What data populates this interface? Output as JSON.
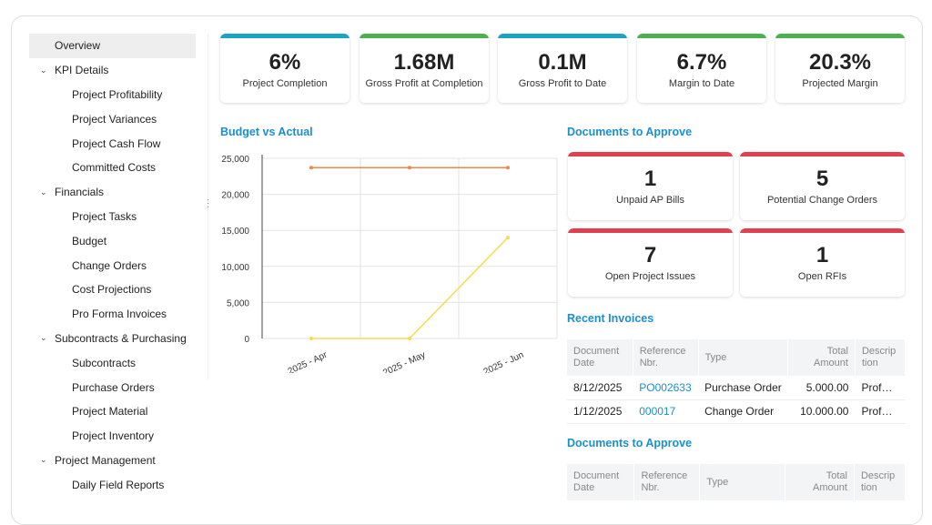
{
  "sidebar": {
    "items": [
      {
        "label": "Overview",
        "level": 0,
        "selected": true
      },
      {
        "label": "KPI Details",
        "level": "group"
      },
      {
        "label": "Project Profitability",
        "level": 1
      },
      {
        "label": "Project Variances",
        "level": 1
      },
      {
        "label": "Project Cash Flow",
        "level": 1
      },
      {
        "label": "Committed Costs",
        "level": 1
      },
      {
        "label": "Financials",
        "level": "group"
      },
      {
        "label": "Project Tasks",
        "level": 1
      },
      {
        "label": "Budget",
        "level": 1
      },
      {
        "label": "Change Orders",
        "level": 1
      },
      {
        "label": "Cost Projections",
        "level": 1
      },
      {
        "label": "Pro Forma Invoices",
        "level": 1
      },
      {
        "label": "Subcontracts & Purchasing",
        "level": "group"
      },
      {
        "label": "Subcontracts",
        "level": 1
      },
      {
        "label": "Purchase Orders",
        "level": 1
      },
      {
        "label": "Project Material",
        "level": 1
      },
      {
        "label": "Project Inventory",
        "level": 1
      },
      {
        "label": "Project Management",
        "level": "group"
      },
      {
        "label": "Daily Field Reports",
        "level": 1
      }
    ]
  },
  "kpis": [
    {
      "value": "6%",
      "label": "Project Completion",
      "color": "#1ba3c6"
    },
    {
      "value": "1.68M",
      "label": "Gross Profit at Completion",
      "color": "#4cb050"
    },
    {
      "value": "0.1M",
      "label": "Gross Profit to Date",
      "color": "#1ba3c6"
    },
    {
      "value": "6.7%",
      "label": "Margin to Date",
      "color": "#4cb050"
    },
    {
      "value": "20.3%",
      "label": "Projected Margin",
      "color": "#4cb050"
    }
  ],
  "budget_title": "Budget vs Actual",
  "chart_data": {
    "type": "line",
    "categories": [
      "2025 - Apr",
      "2025 - May",
      "2025 - Jun"
    ],
    "series": [
      {
        "values": [
          23700,
          23700,
          23700
        ],
        "color": "#f0874a"
      },
      {
        "values": [
          0,
          0,
          14000
        ],
        "color": "#f5dc4a"
      }
    ],
    "ylim": [
      0,
      25000
    ],
    "yticks": [
      "25,000",
      "20,000",
      "15,000",
      "10,000",
      "5,000",
      "0"
    ],
    "grid": true
  },
  "docs_title": "Documents to Approve",
  "doc_cards": [
    {
      "value": "1",
      "label": "Unpaid AP Bills"
    },
    {
      "value": "5",
      "label": "Potential Change Orders"
    },
    {
      "value": "7",
      "label": "Open Project Issues"
    },
    {
      "value": "1",
      "label": "Open RFIs"
    }
  ],
  "doc_card_color": "#e0404f",
  "invoices_title": "Recent Invoices",
  "columns": [
    "Document Date",
    "Reference Nbr.",
    "Type",
    "Total Amount",
    "Descrip tion"
  ],
  "invoices": [
    {
      "date": "8/12/2025",
      "ref": "PO002633",
      "type": "Purchase Order",
      "amount": "5.000.00",
      "desc": "Prof…"
    },
    {
      "date": "1/12/2025",
      "ref": "000017",
      "type": "Change Order",
      "amount": "10.000.00",
      "desc": "Prof…"
    }
  ],
  "docs_title2": "Documents to Approve"
}
